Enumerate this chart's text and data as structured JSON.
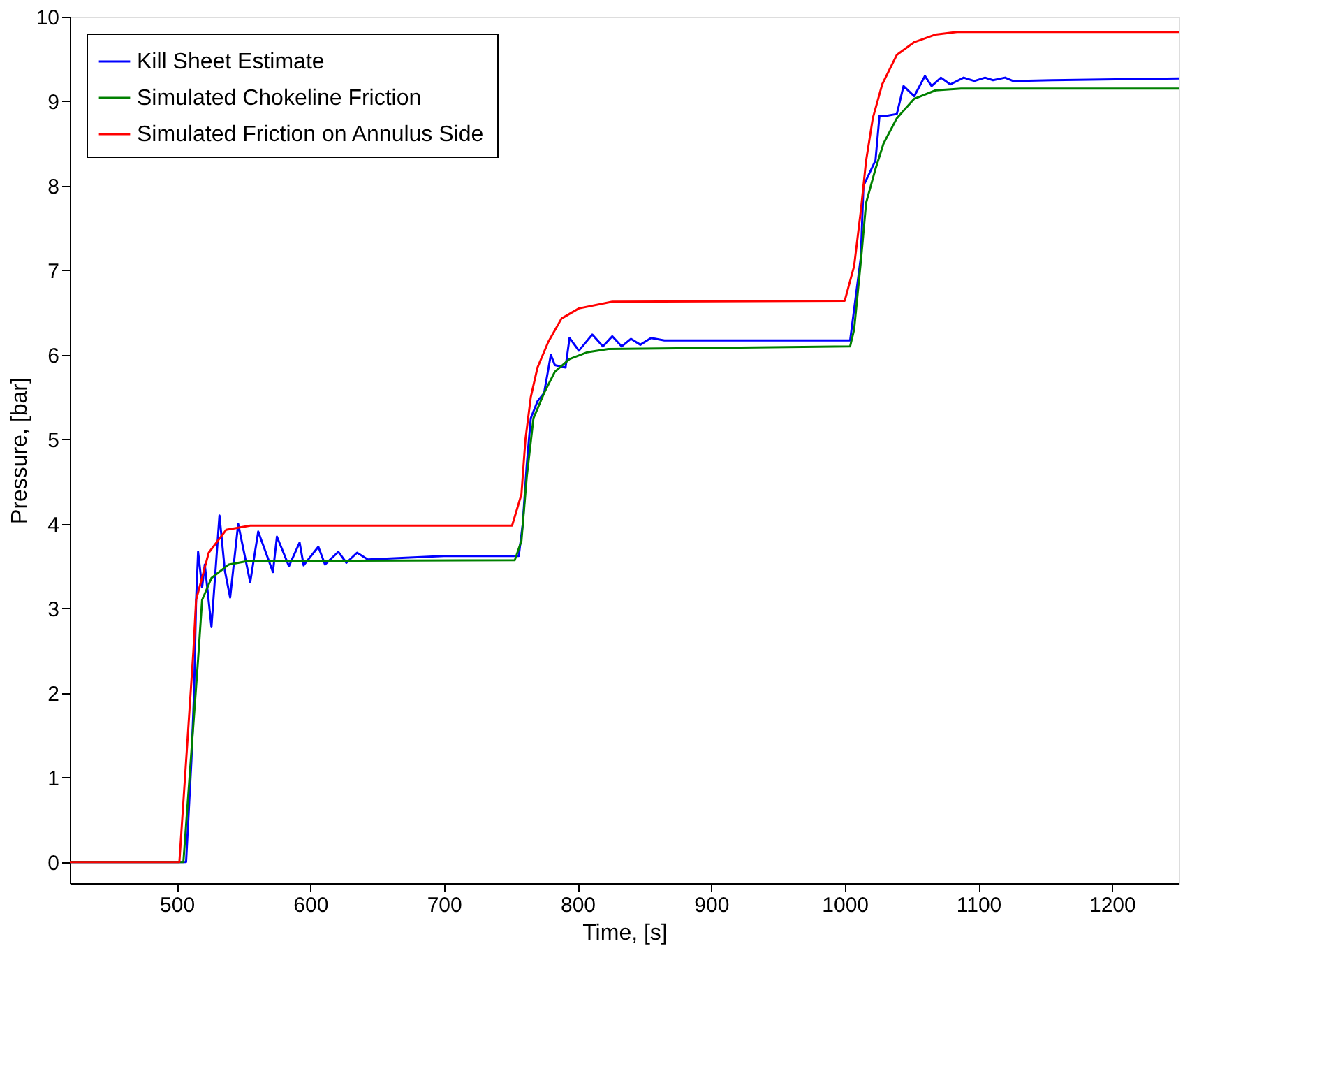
{
  "chart_data": {
    "type": "line",
    "xlabel": "Time, [s]",
    "ylabel": "Pressure, [bar]",
    "xlim": [
      420,
      1250
    ],
    "ylim": [
      -0.25,
      10
    ],
    "xticks": [
      500,
      600,
      700,
      800,
      900,
      1000,
      1100,
      1200
    ],
    "yticks": [
      0,
      1,
      2,
      3,
      4,
      5,
      6,
      7,
      8,
      9,
      10
    ],
    "grid": false,
    "legend": "top left",
    "marker": "none",
    "line_style": "solid",
    "series": [
      {
        "name": "Kill Sheet Estimate",
        "color": "#0000ff",
        "x": [
          420,
          505,
          507,
          511,
          513,
          514.5,
          516,
          519,
          521,
          526,
          532,
          536,
          540,
          546,
          555,
          561,
          572,
          575,
          584,
          592,
          595,
          606,
          611,
          621,
          627,
          635,
          643,
          700,
          756,
          759,
          762,
          765,
          770,
          775,
          780,
          783,
          791,
          794,
          801,
          811,
          819,
          826,
          833,
          840,
          847,
          855,
          865,
          1004,
          1012,
          1014,
          1023,
          1026,
          1032,
          1039,
          1044,
          1052,
          1060,
          1065,
          1072,
          1079,
          1089,
          1097,
          1105,
          1111,
          1120,
          1126,
          1155,
          1250
        ],
        "values": [
          0,
          0,
          0,
          1.2,
          2.0,
          3.1,
          3.67,
          3.25,
          3.52,
          2.78,
          4.1,
          3.45,
          3.13,
          4.0,
          3.31,
          3.91,
          3.43,
          3.85,
          3.5,
          3.78,
          3.51,
          3.73,
          3.52,
          3.67,
          3.54,
          3.66,
          3.58,
          3.62,
          3.62,
          4.0,
          4.7,
          5.25,
          5.45,
          5.55,
          6.0,
          5.88,
          5.85,
          6.2,
          6.05,
          6.24,
          6.1,
          6.22,
          6.1,
          6.19,
          6.12,
          6.2,
          6.17,
          6.17,
          7.15,
          8.0,
          8.3,
          8.83,
          8.83,
          8.85,
          9.18,
          9.06,
          9.3,
          9.18,
          9.28,
          9.2,
          9.28,
          9.24,
          9.28,
          9.25,
          9.28,
          9.24,
          9.25,
          9.27
        ]
      },
      {
        "name": "Simulated Chokeline Friction",
        "color": "#008000",
        "x": [
          420,
          505,
          516,
          519,
          526,
          539,
          553,
          753,
          758,
          762,
          767,
          775,
          783,
          794,
          807,
          823,
          1004,
          1007,
          1012,
          1016,
          1023,
          1029,
          1039,
          1052,
          1068,
          1087,
          1250
        ],
        "values": [
          0,
          0,
          2.4,
          3.1,
          3.36,
          3.52,
          3.56,
          3.57,
          3.8,
          4.56,
          5.25,
          5.55,
          5.8,
          5.95,
          6.03,
          6.07,
          6.1,
          6.3,
          7.1,
          7.8,
          8.2,
          8.5,
          8.8,
          9.03,
          9.13,
          9.15,
          9.15
        ]
      },
      {
        "name": "Simulated Friction on Annulus Side",
        "color": "#ff0000",
        "x": [
          420,
          502,
          512.5,
          514.5,
          524,
          537,
          555,
          751,
          758,
          761,
          765,
          770,
          778,
          788,
          801,
          826,
          1000,
          1007,
          1012,
          1016,
          1021,
          1028,
          1039,
          1052,
          1068,
          1084,
          1250
        ],
        "values": [
          0,
          0,
          2.5,
          3.1,
          3.66,
          3.93,
          3.98,
          3.98,
          4.35,
          5.0,
          5.5,
          5.85,
          6.15,
          6.43,
          6.55,
          6.63,
          6.64,
          7.05,
          7.7,
          8.3,
          8.8,
          9.2,
          9.55,
          9.7,
          9.79,
          9.82,
          9.82
        ]
      }
    ]
  }
}
